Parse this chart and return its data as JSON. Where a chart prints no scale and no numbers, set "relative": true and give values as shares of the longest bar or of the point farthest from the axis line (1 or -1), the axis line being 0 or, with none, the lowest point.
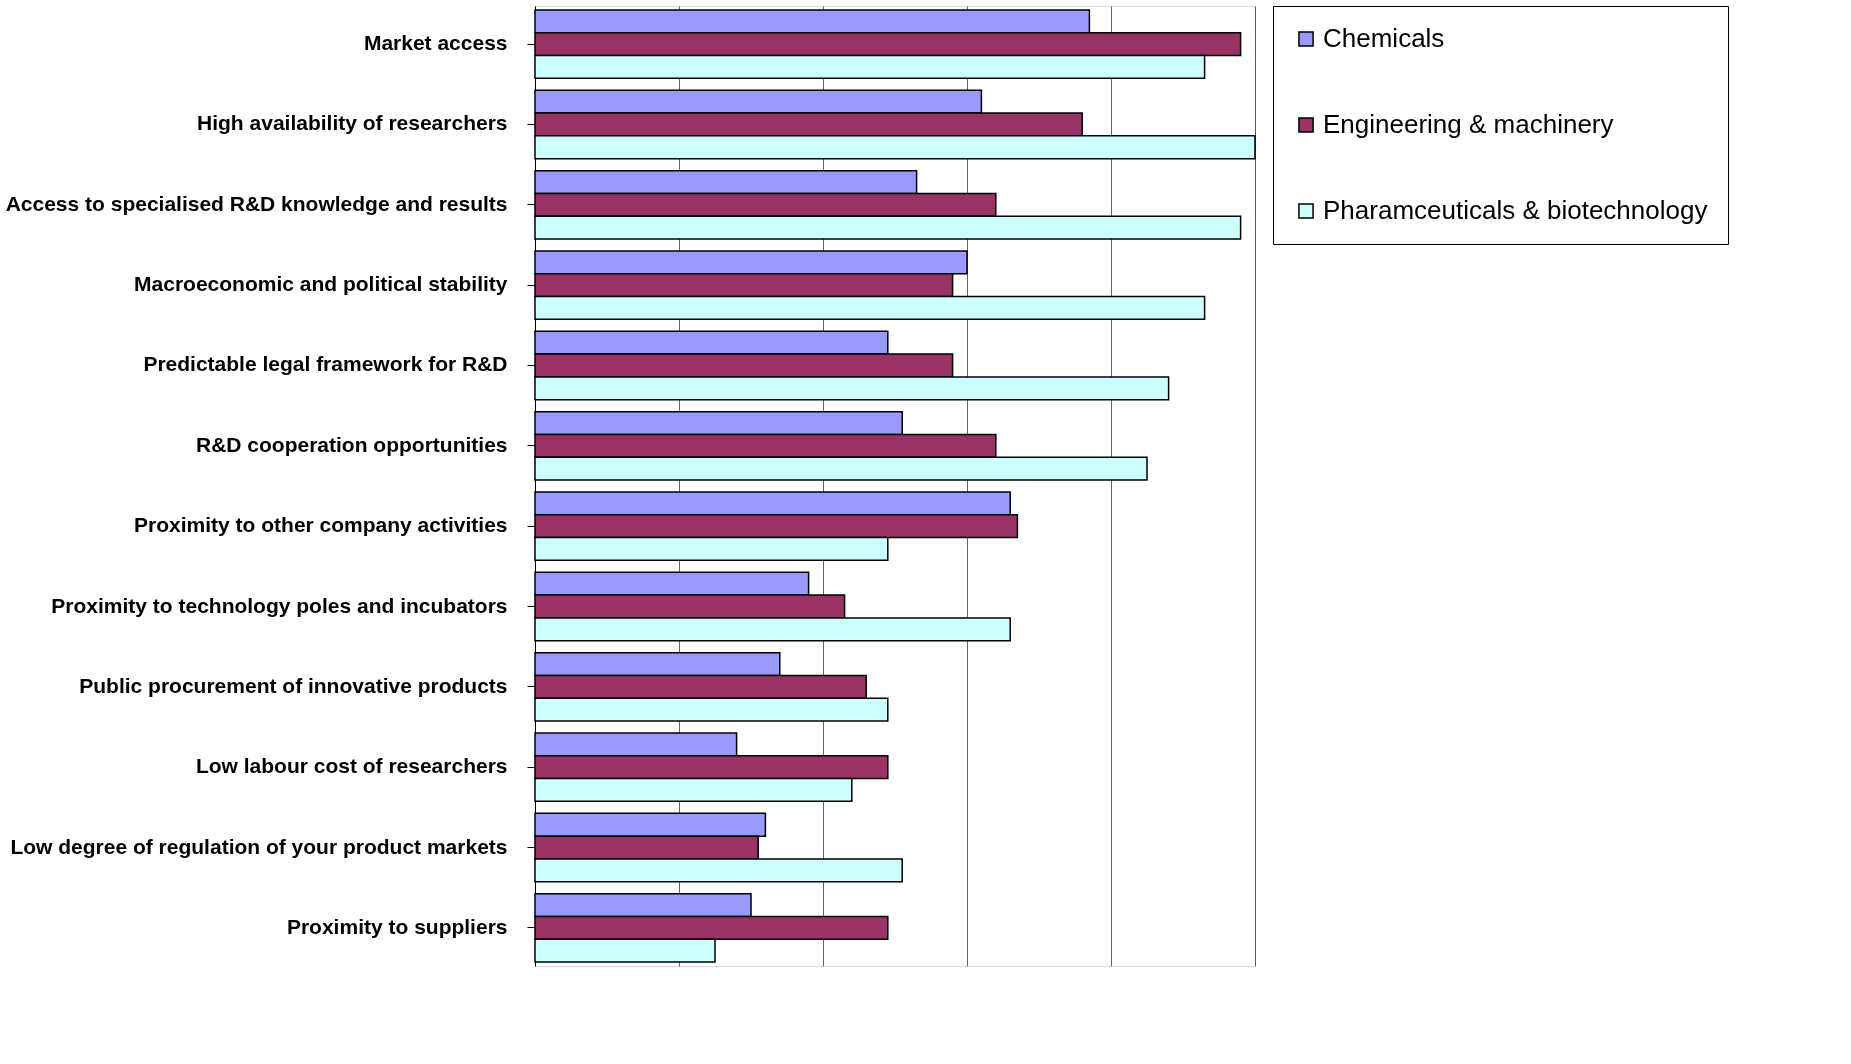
{
  "chart_data": {
    "type": "bar",
    "orientation": "horizontal",
    "relative": true,
    "grid": "x",
    "legend": "right",
    "categories": [
      "Market access",
      "High availability of researchers",
      "Access to specialised R&D knowledge and results",
      "Macroeconomic and political stability",
      "Predictable legal framework for R&D",
      "R&D cooperation opportunities",
      "Proximity to other company activities",
      "Proximity to technology poles and incubators",
      "Public procurement of innovative products",
      "Low labour cost of researchers",
      "Low degree of regulation of your product markets",
      "Proximity to suppliers"
    ],
    "series": [
      {
        "name": "Chemicals",
        "color": "#9999ff",
        "values": [
          0.77,
          0.62,
          0.53,
          0.6,
          0.49,
          0.51,
          0.66,
          0.38,
          0.34,
          0.28,
          0.32,
          0.3
        ]
      },
      {
        "name": "Engineering & machinery",
        "color": "#993366",
        "values": [
          0.98,
          0.76,
          0.64,
          0.58,
          0.58,
          0.64,
          0.67,
          0.43,
          0.46,
          0.49,
          0.31,
          0.49
        ]
      },
      {
        "name": "Pharamceuticals & biotechnology",
        "color": "#ccffff",
        "values": [
          0.93,
          1,
          0.98,
          0.93,
          0.88,
          0.85,
          0.49,
          0.66,
          0.49,
          0.44,
          0.51,
          0.25
        ]
      }
    ]
  }
}
